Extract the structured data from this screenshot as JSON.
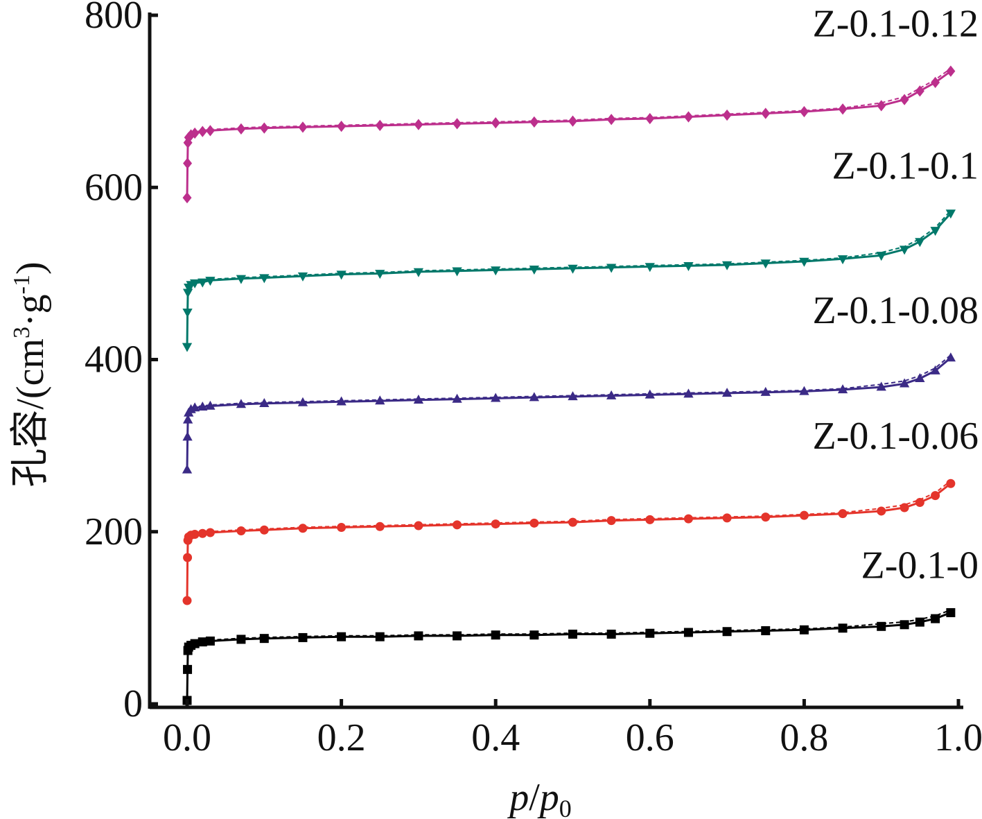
{
  "chart_data": {
    "type": "line",
    "x_axis": {
      "label_italic_1": "p",
      "label_sep": "/",
      "label_italic_2": "p",
      "label_sub": "0",
      "range": [
        0,
        1
      ],
      "ticks": [
        0,
        0.2,
        0.4,
        0.6,
        0.8,
        1.0
      ],
      "tick_labels": [
        "0.0",
        "0.2",
        "0.4",
        "0.6",
        "0.8",
        "1.0"
      ]
    },
    "y_axis": {
      "label_main": "孔容/(cm",
      "label_sup1": "3",
      "label_mid": "·g",
      "label_sup2": "-1",
      "label_end": ")",
      "range": [
        0,
        800
      ],
      "ticks": [
        0,
        200,
        400,
        600,
        800
      ],
      "tick_labels": [
        "0",
        "200",
        "400",
        "600",
        "800"
      ]
    },
    "grid": false,
    "series": [
      {
        "name": "Z-0.1-0",
        "color": "#000000",
        "marker": "square",
        "x": [
          0.0,
          0.0005,
          0.001,
          0.002,
          0.005,
          0.01,
          0.02,
          0.03,
          0.07,
          0.1,
          0.15,
          0.2,
          0.25,
          0.3,
          0.35,
          0.4,
          0.45,
          0.5,
          0.55,
          0.6,
          0.65,
          0.7,
          0.75,
          0.8,
          0.85,
          0.9,
          0.93,
          0.95,
          0.97,
          0.99
        ],
        "y": [
          4,
          40,
          62,
          66,
          68,
          70,
          72,
          73,
          75,
          76,
          77,
          78,
          78,
          79,
          79,
          80,
          80,
          81,
          81,
          82,
          83,
          84,
          85,
          86,
          88,
          90,
          92,
          95,
          99,
          106
        ]
      },
      {
        "name": "Z-0.1-0.06",
        "color": "#e4342b",
        "marker": "circle",
        "x": [
          0.0,
          0.0005,
          0.001,
          0.002,
          0.005,
          0.01,
          0.02,
          0.03,
          0.07,
          0.1,
          0.15,
          0.2,
          0.25,
          0.3,
          0.35,
          0.4,
          0.45,
          0.5,
          0.55,
          0.6,
          0.65,
          0.7,
          0.75,
          0.8,
          0.85,
          0.9,
          0.93,
          0.95,
          0.97,
          0.99
        ],
        "y": [
          120,
          170,
          190,
          194,
          196,
          197,
          198,
          199,
          201,
          202,
          204,
          205,
          206,
          207,
          208,
          209,
          210,
          211,
          213,
          214,
          215,
          216,
          217,
          219,
          221,
          224,
          228,
          234,
          242,
          256
        ]
      },
      {
        "name": "Z-0.1-0.08",
        "color": "#3b2a86",
        "marker": "triangle-up",
        "x": [
          0.0,
          0.0005,
          0.001,
          0.002,
          0.005,
          0.01,
          0.02,
          0.03,
          0.07,
          0.1,
          0.15,
          0.2,
          0.25,
          0.3,
          0.35,
          0.4,
          0.45,
          0.5,
          0.55,
          0.6,
          0.65,
          0.7,
          0.75,
          0.8,
          0.85,
          0.9,
          0.93,
          0.95,
          0.97,
          0.99
        ],
        "y": [
          272,
          310,
          330,
          338,
          342,
          344,
          345,
          346,
          348,
          349,
          350,
          351,
          352,
          353,
          354,
          355,
          356,
          357,
          358,
          359,
          360,
          361,
          362,
          363,
          365,
          368,
          372,
          378,
          387,
          402
        ]
      },
      {
        "name": "Z-0.1-0.1",
        "color": "#00786a",
        "marker": "triangle-down",
        "x": [
          0.0,
          0.0005,
          0.001,
          0.002,
          0.005,
          0.01,
          0.02,
          0.03,
          0.07,
          0.1,
          0.15,
          0.2,
          0.25,
          0.3,
          0.35,
          0.4,
          0.45,
          0.5,
          0.55,
          0.6,
          0.65,
          0.7,
          0.75,
          0.8,
          0.85,
          0.9,
          0.93,
          0.95,
          0.97,
          0.99
        ],
        "y": [
          415,
          455,
          478,
          484,
          487,
          489,
          490,
          492,
          494,
          495,
          497,
          499,
          500,
          502,
          503,
          504,
          505,
          506,
          507,
          508,
          509,
          510,
          512,
          514,
          517,
          521,
          528,
          537,
          550,
          570
        ]
      },
      {
        "name": "Z-0.1-0.12",
        "color": "#bc2f8c",
        "marker": "diamond",
        "x": [
          0.0,
          0.0005,
          0.001,
          0.002,
          0.005,
          0.01,
          0.02,
          0.03,
          0.07,
          0.1,
          0.15,
          0.2,
          0.25,
          0.3,
          0.35,
          0.4,
          0.45,
          0.5,
          0.55,
          0.6,
          0.65,
          0.7,
          0.75,
          0.8,
          0.85,
          0.9,
          0.93,
          0.95,
          0.97,
          0.99
        ],
        "y": [
          588,
          628,
          652,
          658,
          661,
          663,
          665,
          666,
          668,
          669,
          670,
          671,
          672,
          673,
          674,
          675,
          676,
          677,
          679,
          680,
          682,
          684,
          686,
          688,
          691,
          695,
          702,
          712,
          722,
          735
        ]
      }
    ]
  }
}
